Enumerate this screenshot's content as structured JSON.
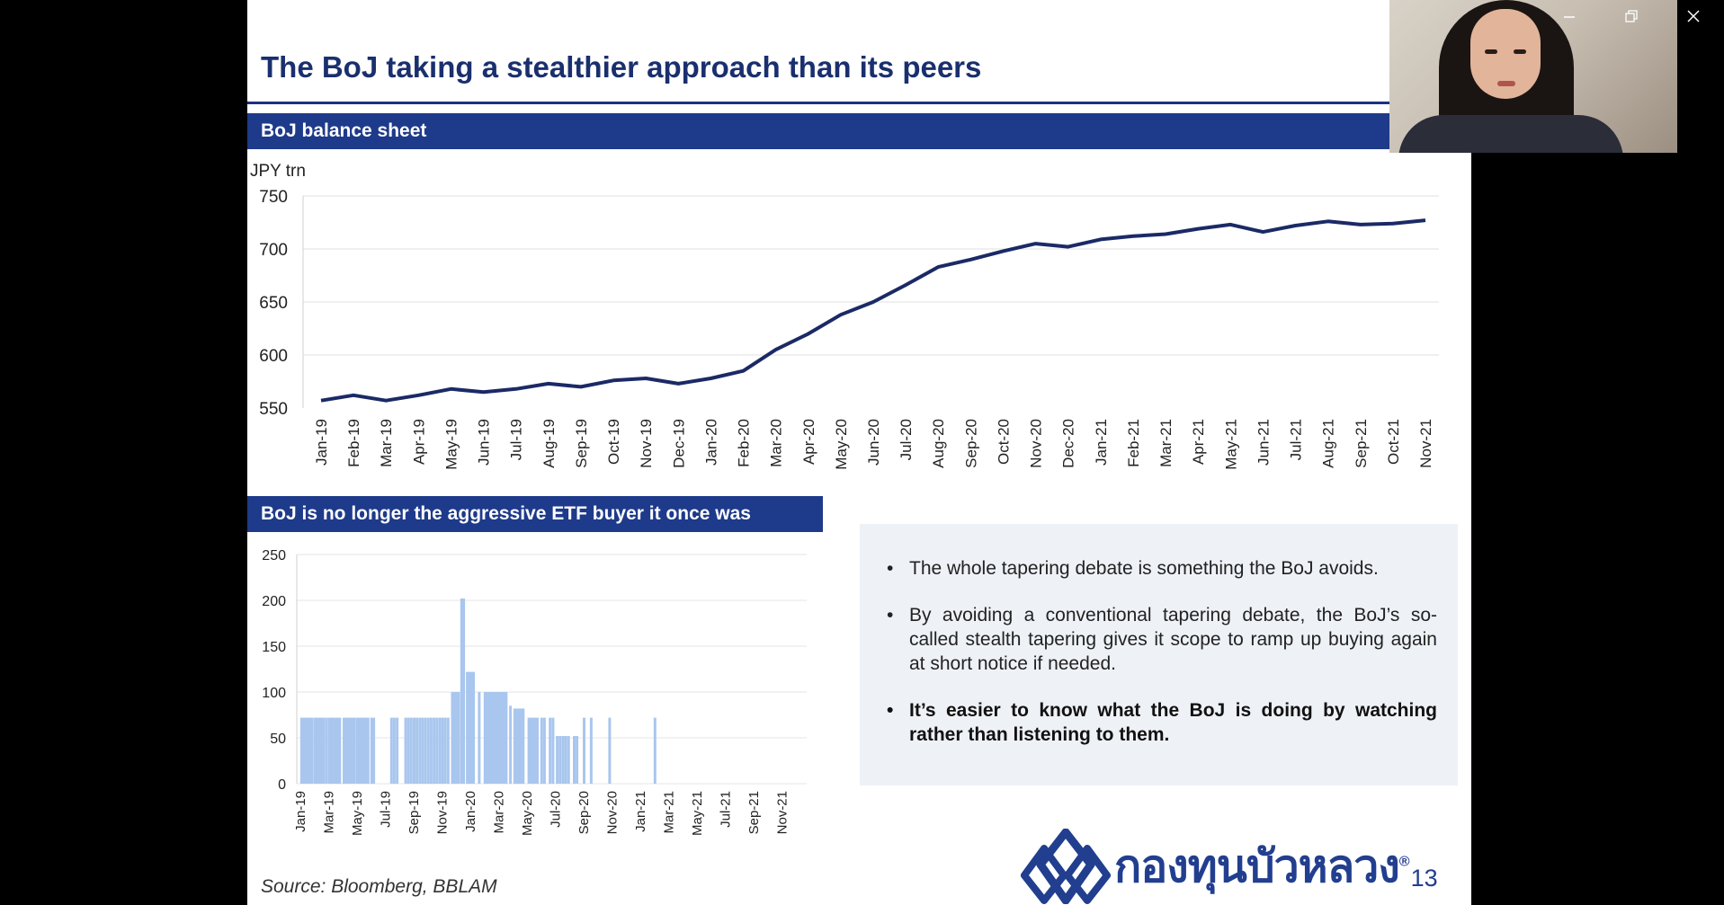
{
  "slide": {
    "title": "The BoJ taking a stealthier approach than its peers",
    "section1": "BoJ balance sheet",
    "section2": "BoJ is no longer  the aggressive ETF buyer it  once was",
    "bullets": [
      "The whole tapering debate is something the BoJ avoids.",
      "By avoiding a conventional tapering debate, the BoJ’s so-called stealth tapering gives it scope to ramp up buying again at short notice if needed.",
      "It’s easier to know what the BoJ is doing by watching rather than listening to them."
    ],
    "source": "Source:  Bloomberg, BBLAM",
    "logo_text": "กองทุนบัวหลวง",
    "logo_reg": "®",
    "page_number": "13"
  },
  "window_controls": [
    "minimize-icon",
    "restore-icon",
    "close-icon"
  ],
  "colors": {
    "navy": "#1e3a8a",
    "line": "#1b2a66",
    "bar": "#a9c6ee"
  },
  "chart_data": [
    {
      "type": "line",
      "ylabel": "JPY trn",
      "ylim": [
        550,
        750
      ],
      "yticks": [
        550,
        600,
        650,
        700,
        750
      ],
      "categories": [
        "Jan-19",
        "Feb-19",
        "Mar-19",
        "Apr-19",
        "May-19",
        "Jun-19",
        "Jul-19",
        "Aug-19",
        "Sep-19",
        "Oct-19",
        "Nov-19",
        "Dec-19",
        "Jan-20",
        "Feb-20",
        "Mar-20",
        "Apr-20",
        "May-20",
        "Jun-20",
        "Jul-20",
        "Aug-20",
        "Sep-20",
        "Oct-20",
        "Nov-20",
        "Dec-20",
        "Jan-21",
        "Feb-21",
        "Mar-21",
        "Apr-21",
        "May-21",
        "Jun-21",
        "Jul-21",
        "Aug-21",
        "Sep-21",
        "Oct-21",
        "Nov-21"
      ],
      "values": [
        557,
        562,
        557,
        562,
        568,
        565,
        568,
        573,
        570,
        576,
        578,
        573,
        578,
        585,
        605,
        620,
        638,
        650,
        666,
        683,
        690,
        698,
        705,
        702,
        709,
        712,
        714,
        719,
        723,
        716,
        722,
        726,
        723,
        724,
        727
      ],
      "grid": true
    },
    {
      "type": "bar",
      "ylim": [
        0,
        250
      ],
      "yticks": [
        0,
        50,
        100,
        150,
        200,
        250
      ],
      "xticks": [
        "Jan-19",
        "Mar-19",
        "May-19",
        "Jul-19",
        "Sep-19",
        "Nov-19",
        "Jan-20",
        "Mar-20",
        "May-20",
        "Jul-20",
        "Sep-20",
        "Nov-20",
        "Jan-21",
        "Mar-21",
        "May-21",
        "Jul-21",
        "Sep-21",
        "Nov-21"
      ],
      "months": 36,
      "bars": [
        [
          0.05,
          72
        ],
        [
          0.2,
          72
        ],
        [
          0.35,
          72
        ],
        [
          0.5,
          72
        ],
        [
          0.65,
          72
        ],
        [
          0.8,
          72
        ],
        [
          1.0,
          72
        ],
        [
          1.15,
          72
        ],
        [
          1.3,
          72
        ],
        [
          1.45,
          72
        ],
        [
          1.6,
          72
        ],
        [
          1.8,
          72
        ],
        [
          2.0,
          72
        ],
        [
          2.15,
          72
        ],
        [
          2.3,
          72
        ],
        [
          2.45,
          72
        ],
        [
          2.6,
          72
        ],
        [
          2.75,
          72
        ],
        [
          3.05,
          72
        ],
        [
          3.2,
          72
        ],
        [
          3.35,
          72
        ],
        [
          3.5,
          72
        ],
        [
          3.65,
          72
        ],
        [
          3.8,
          72
        ],
        [
          4.0,
          72
        ],
        [
          4.15,
          72
        ],
        [
          4.3,
          72
        ],
        [
          4.45,
          72
        ],
        [
          4.6,
          72
        ],
        [
          4.75,
          72
        ],
        [
          5.0,
          72
        ],
        [
          5.15,
          72
        ],
        [
          6.4,
          72
        ],
        [
          6.6,
          72
        ],
        [
          6.8,
          72
        ],
        [
          7.4,
          72
        ],
        [
          7.6,
          72
        ],
        [
          7.8,
          72
        ],
        [
          8.0,
          72
        ],
        [
          8.2,
          72
        ],
        [
          8.4,
          72
        ],
        [
          8.6,
          72
        ],
        [
          8.8,
          72
        ],
        [
          9.0,
          72
        ],
        [
          9.2,
          72
        ],
        [
          9.4,
          72
        ],
        [
          9.6,
          72
        ],
        [
          9.8,
          72
        ],
        [
          10.0,
          72
        ],
        [
          10.2,
          72
        ],
        [
          10.4,
          72
        ],
        [
          10.7,
          100
        ],
        [
          10.85,
          100
        ],
        [
          11.0,
          100
        ],
        [
          11.15,
          100
        ],
        [
          11.35,
          202
        ],
        [
          11.5,
          202
        ],
        [
          11.75,
          122
        ],
        [
          11.9,
          122
        ],
        [
          12.05,
          122
        ],
        [
          12.2,
          122
        ],
        [
          12.6,
          100
        ],
        [
          13.0,
          100
        ],
        [
          13.15,
          100
        ],
        [
          13.3,
          100
        ],
        [
          13.45,
          100
        ],
        [
          13.6,
          100
        ],
        [
          13.75,
          100
        ],
        [
          13.9,
          100
        ],
        [
          14.05,
          100
        ],
        [
          14.2,
          100
        ],
        [
          14.35,
          100
        ],
        [
          14.5,
          100
        ],
        [
          14.8,
          85
        ],
        [
          15.1,
          82
        ],
        [
          15.25,
          82
        ],
        [
          15.4,
          82
        ],
        [
          15.55,
          82
        ],
        [
          15.7,
          82
        ],
        [
          16.1,
          72
        ],
        [
          16.25,
          72
        ],
        [
          16.4,
          72
        ],
        [
          16.55,
          72
        ],
        [
          16.7,
          72
        ],
        [
          17.0,
          72
        ],
        [
          17.2,
          72
        ],
        [
          17.6,
          72
        ],
        [
          17.8,
          72
        ],
        [
          18.1,
          52
        ],
        [
          18.3,
          52
        ],
        [
          18.5,
          52
        ],
        [
          18.7,
          52
        ],
        [
          18.9,
          52
        ],
        [
          19.3,
          52
        ],
        [
          19.5,
          52
        ],
        [
          20.0,
          72
        ],
        [
          20.5,
          72
        ],
        [
          21.8,
          72
        ],
        [
          25.0,
          72
        ]
      ],
      "grid": true
    }
  ]
}
